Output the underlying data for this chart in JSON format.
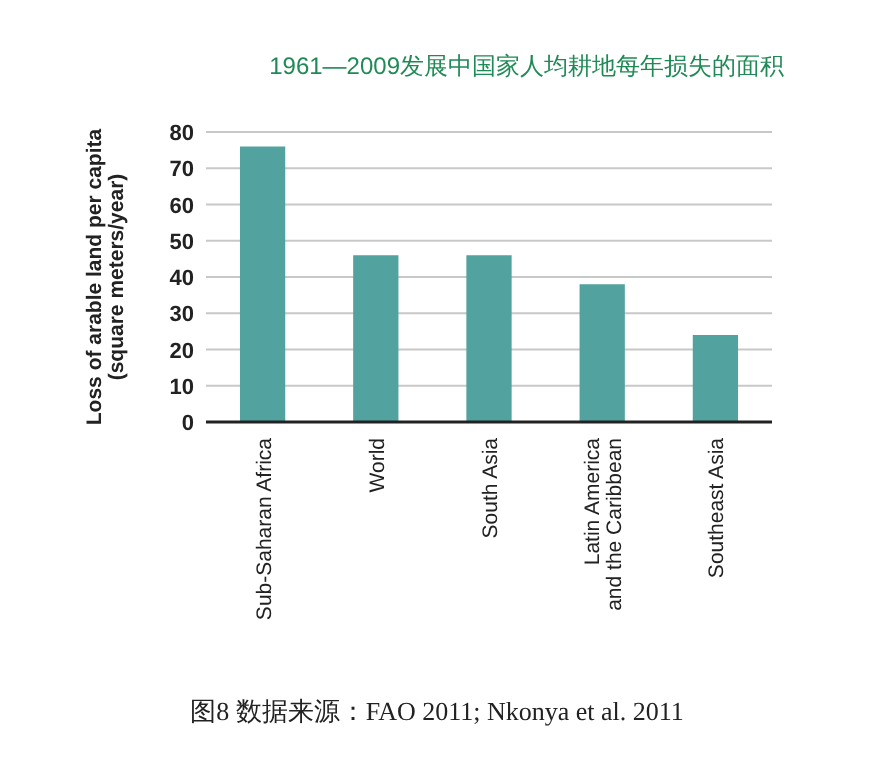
{
  "chart_data": {
    "type": "bar",
    "title": "1961—2009发展中国家人均耕地每年损失的面积",
    "ylabel": "Loss of arable land per capita\n(square meters/year)",
    "categories": [
      "Sub-Saharan Africa",
      "World",
      "South Asia",
      "Latin America\nand the Caribbean",
      "Southeast Asia"
    ],
    "values": [
      76,
      46,
      46,
      38,
      24
    ],
    "color": "#52a39f",
    "ylim": [
      0,
      80
    ],
    "yticks": [
      0,
      10,
      20,
      30,
      40,
      50,
      60,
      70,
      80
    ],
    "grid": "y",
    "annotations": [
      "图8  数据来源：FAO 2011; Nkonya et al. 2011"
    ]
  }
}
